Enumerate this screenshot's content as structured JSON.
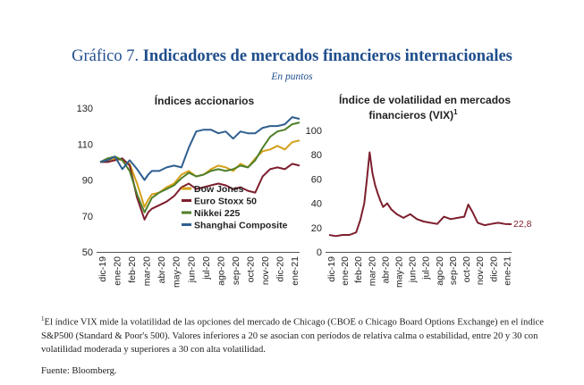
{
  "header": {
    "title_prefix": "Gráfico 7.",
    "title_main": "Indicadores de mercados financieros internacionales",
    "subtitle": "En puntos"
  },
  "chart_data": [
    {
      "type": "line",
      "title": "Índices accionarios",
      "ylim": [
        50,
        130
      ],
      "yticks": [
        50,
        70,
        90,
        110,
        130
      ],
      "xlabels": [
        "dic-19",
        "ene-20",
        "feb-20",
        "mar-20",
        "abr-20",
        "may-20",
        "jun-20",
        "jul-20",
        "ago-20",
        "sep-20",
        "oct-20",
        "nov-20",
        "dic-20",
        "ene-21"
      ],
      "x": [
        0,
        0.5,
        1,
        1.5,
        2,
        2.5,
        3,
        3.25,
        3.5,
        4,
        4.5,
        5,
        5.5,
        6,
        6.5,
        7,
        7.5,
        8,
        8.5,
        9,
        9.5,
        10,
        10.5,
        11,
        11.5,
        12,
        12.5,
        13,
        13.5
      ],
      "series": [
        {
          "name": "Dow Jones",
          "color": "#d4a017",
          "values": [
            100,
            101,
            102,
            101,
            99,
            88,
            75,
            79,
            82,
            83,
            86,
            88,
            93,
            95,
            92,
            93,
            96,
            98,
            97,
            95,
            99,
            97,
            102,
            106,
            107,
            109,
            107,
            111,
            112
          ]
        },
        {
          "name": "Euro Stoxx 50",
          "color": "#7d1f2e",
          "values": [
            100,
            100,
            101,
            102,
            98,
            80,
            68,
            72,
            74,
            76,
            78,
            81,
            86,
            88,
            85,
            86,
            87,
            88,
            87,
            85,
            86,
            84,
            83,
            92,
            96,
            97,
            96,
            99,
            98
          ]
        },
        {
          "name": "Nikkei 225",
          "color": "#4f7f2a",
          "values": [
            100,
            102,
            103,
            101,
            95,
            82,
            72,
            76,
            80,
            83,
            85,
            87,
            91,
            94,
            92,
            93,
            95,
            96,
            95,
            96,
            98,
            97,
            101,
            108,
            114,
            117,
            118,
            121,
            122
          ]
        },
        {
          "name": "Shanghai Composite",
          "color": "#2f5f8f",
          "values": [
            100,
            101,
            103,
            96,
            101,
            96,
            90,
            93,
            95,
            95,
            97,
            98,
            97,
            108,
            117,
            118,
            118,
            116,
            117,
            113,
            117,
            116,
            116,
            119,
            120,
            120,
            121,
            125,
            124
          ]
        }
      ]
    },
    {
      "type": "line",
      "title": "Índice de volatilidad en mercados financieros (VIX)",
      "title_line1": "Índice de volatilidad en mercados",
      "title_line2": "financieros (VIX)",
      "footnote_mark": "1",
      "ylim": [
        0,
        100
      ],
      "yticks": [
        0,
        20,
        40,
        60,
        80,
        100
      ],
      "xlabels": [
        "dic-19",
        "ene-20",
        "feb-20",
        "mar-20",
        "abr-20",
        "may-20",
        "jun-20",
        "jul-20",
        "ago-20",
        "sep-20",
        "oct-20",
        "nov-20",
        "dic-20",
        "ene-21"
      ],
      "x": [
        0,
        0.5,
        1,
        1.5,
        2,
        2.3,
        2.6,
        2.8,
        3,
        3.2,
        3.4,
        3.6,
        3.8,
        4,
        4.3,
        4.6,
        5,
        5.5,
        6,
        6.5,
        7,
        7.5,
        8,
        8.5,
        9,
        9.5,
        10,
        10.3,
        10.6,
        11,
        11.5,
        12,
        12.5,
        13,
        13.5
      ],
      "series": [
        {
          "name": "VIX",
          "color": "#7d1f2e",
          "values": [
            14,
            13,
            14,
            14,
            16,
            26,
            40,
            60,
            82,
            65,
            55,
            48,
            42,
            37,
            40,
            35,
            31,
            28,
            31,
            27,
            25,
            24,
            23,
            29,
            27,
            28,
            29,
            39,
            33,
            24,
            22,
            23,
            24,
            23,
            22.8
          ]
        }
      ],
      "end_label": "22,8"
    }
  ],
  "footnote": {
    "mark": "1",
    "text": "El índice VIX mide la volatilidad de las opciones del mercado de Chicago (CBOE o Chicago Board Options Exchange) en el índice S&P500 (Standard & Poor's 500). Valores inferiores a 20 se asocian con períodos de relativa calma o estabilidad, entre 20 y 30 con volatilidad moderada y superiores a 30 con alta volatilidad.",
    "source": "Fuente: Bloomberg."
  }
}
